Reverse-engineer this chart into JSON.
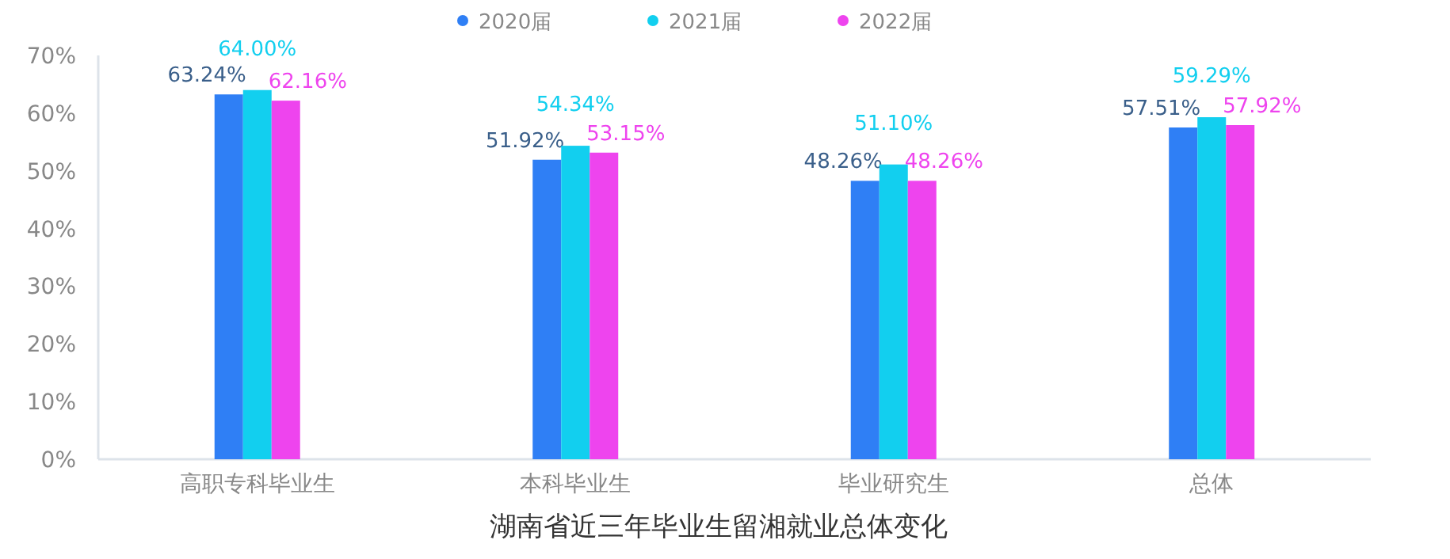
{
  "chart_data": {
    "type": "bar",
    "title": "湖南省近三年毕业生留湘就业总体变化",
    "categories": [
      "高职专科毕业生",
      "本科毕业生",
      "毕业研究生",
      "总体"
    ],
    "series": [
      {
        "name": "2020届",
        "color": "#2f7ff5",
        "values": [
          63.24,
          51.92,
          48.26,
          57.51
        ],
        "value_labels": [
          "63.24%",
          "51.92%",
          "48.26%",
          "57.51%"
        ]
      },
      {
        "name": "2021届",
        "color": "#12cfef",
        "values": [
          64.0,
          54.34,
          51.1,
          59.29
        ],
        "value_labels": [
          "64.00%",
          "54.34%",
          "51.10%",
          "59.29%"
        ]
      },
      {
        "name": "2022届",
        "color": "#ee44ee",
        "values": [
          62.16,
          53.15,
          48.26,
          57.92
        ],
        "value_labels": [
          "62.16%",
          "53.15%",
          "48.26%",
          "57.92%"
        ]
      }
    ],
    "ylim": [
      0,
      70
    ],
    "yticks": [
      {
        "value": 0,
        "label": "0%"
      },
      {
        "value": 10,
        "label": "10%"
      },
      {
        "value": 20,
        "label": "20%"
      },
      {
        "value": 30,
        "label": "30%"
      },
      {
        "value": 40,
        "label": "40%"
      },
      {
        "value": 50,
        "label": "50%"
      },
      {
        "value": 60,
        "label": "60%"
      },
      {
        "value": 70,
        "label": "70%"
      }
    ],
    "grid": false,
    "legend": "top"
  }
}
